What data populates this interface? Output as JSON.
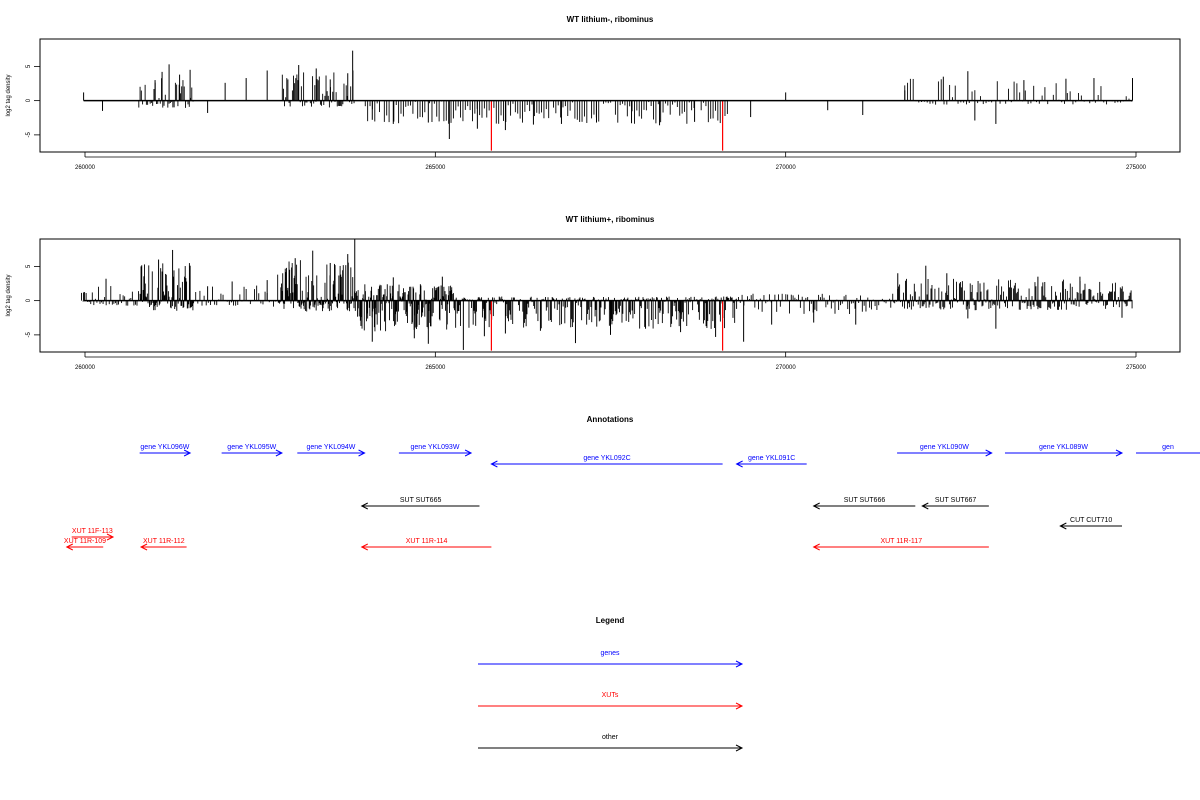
{
  "chart_data": [
    {
      "type": "bar",
      "title": "WT lithium-, ribominus",
      "xlabel": "",
      "ylabel": "log2 tag density",
      "xlim": [
        259800,
        275800
      ],
      "ylim": [
        -7.5,
        9.0
      ],
      "xticks": [
        260000,
        265000,
        270000,
        275000
      ],
      "yticks": [
        -5,
        0,
        5
      ],
      "series": [
        {
          "color": "#000000",
          "x": [
            259980,
            260250,
            261000,
            261100,
            261200,
            261350,
            261500,
            261750,
            262000,
            262300,
            262600,
            263050,
            263300,
            263500,
            263750,
            263820,
            264100,
            264400,
            264900,
            265200,
            265600,
            266000,
            266400,
            266800,
            267300,
            267800,
            268200,
            268700,
            269500,
            270000,
            270600,
            271100,
            271700,
            272250,
            272600,
            272700,
            273000,
            273400,
            274000,
            274400,
            274950
          ],
          "values": [
            1.2,
            -1.5,
            3.0,
            4.2,
            5.3,
            3.8,
            4.5,
            -1.8,
            2.6,
            3.3,
            4.4,
            5.2,
            4.7,
            3.1,
            4.0,
            7.3,
            -2.8,
            -3.4,
            -3.2,
            -5.6,
            -4.1,
            -4.3,
            -3.5,
            -3.4,
            -3.2,
            -3.3,
            -3.6,
            -3.1,
            -2.4,
            1.2,
            -1.4,
            -2.1,
            1.5,
            3.5,
            4.3,
            -2.9,
            -3.4,
            3.0,
            3.2,
            3.3,
            3.3
          ]
        },
        {
          "color": "#ff0000",
          "x": [
            265800,
            269100
          ],
          "values": [
            -7.3,
            -7.3
          ]
        }
      ]
    },
    {
      "type": "bar",
      "title": "WT lithium+, ribominus",
      "xlabel": "",
      "ylabel": "log2 tag density",
      "xlim": [
        259800,
        275800
      ],
      "ylim": [
        -7.5,
        9.0
      ],
      "xticks": [
        260000,
        265000,
        270000,
        275000
      ],
      "yticks": [
        -5,
        0,
        5
      ],
      "series": [
        {
          "color": "#000000",
          "x": [
            259980,
            260300,
            260800,
            261050,
            261250,
            261500,
            261750,
            262100,
            262600,
            263000,
            263250,
            263500,
            263750,
            263850,
            264100,
            264400,
            264700,
            264900,
            265100,
            265400,
            265700,
            266000,
            266500,
            267000,
            267500,
            268000,
            268500,
            269000,
            269400,
            269800,
            270400,
            271000,
            271600,
            272000,
            272300,
            272600,
            273000,
            273600,
            274200,
            274800
          ],
          "values": [
            1.2,
            3.2,
            5.0,
            6.0,
            7.4,
            5.1,
            2.1,
            2.8,
            3.0,
            6.2,
            7.3,
            5.5,
            6.8,
            9.0,
            -6.0,
            3.4,
            -5.5,
            -6.3,
            3.5,
            -7.2,
            -5.2,
            -4.8,
            -4.4,
            -6.2,
            -5.0,
            -4.1,
            -4.6,
            -5.3,
            -6.0,
            -3.5,
            -3.2,
            -3.5,
            4.0,
            5.1,
            4.0,
            -2.6,
            -4.1,
            3.5,
            3.5,
            -2.5
          ]
        },
        {
          "color": "#ff0000",
          "x": [
            265800,
            269100
          ],
          "values": [
            -7.3,
            -7.3
          ]
        }
      ]
    }
  ],
  "annotations": {
    "title": "Annotations",
    "features": [
      {
        "label": "gene YKL096W",
        "start": 260780,
        "end": 261500,
        "color": "#0000ff",
        "row": 0
      },
      {
        "label": "gene YKL095W",
        "start": 261950,
        "end": 262810,
        "color": "#0000ff",
        "row": 0
      },
      {
        "label": "gene YKL094W",
        "start": 263030,
        "end": 263990,
        "color": "#0000ff",
        "row": 0
      },
      {
        "label": "gene YKL093W",
        "start": 264480,
        "end": 265510,
        "color": "#0000ff",
        "row": 0
      },
      {
        "label": "gene YKL092C",
        "start": 265800,
        "end": 269100,
        "color": "#0000ff",
        "row": 1
      },
      {
        "label": "gene YKL091C",
        "start": 269300,
        "end": 270300,
        "color": "#0000ff",
        "row": 1
      },
      {
        "label": "gene YKL090W",
        "start": 271590,
        "end": 272940,
        "color": "#0000ff",
        "row": 0
      },
      {
        "label": "gene YKL089W",
        "start": 273130,
        "end": 274800,
        "color": "#0000ff",
        "row": 0
      },
      {
        "label": "gen",
        "start": 275000,
        "end": 276000,
        "color": "#0000ff",
        "row": 0
      },
      {
        "label": "SUT SUT665",
        "start": 263950,
        "end": 265630,
        "color": "#000000",
        "row": 3
      },
      {
        "label": "SUT SUT666",
        "start": 270400,
        "end": 271850,
        "color": "#000000",
        "row": 3
      },
      {
        "label": "SUT SUT667",
        "start": 271950,
        "end": 272900,
        "color": "#000000",
        "row": 3
      },
      {
        "label": "CUT CUT710",
        "start": 273920,
        "end": 274800,
        "color": "#000000",
        "row": 4
      },
      {
        "label": "XUT 11F-113",
        "start": 259810,
        "end": 260400,
        "color": "#ff0000",
        "row": 5
      },
      {
        "label": "XUT 11R-109",
        "start": 259740,
        "end": 260260,
        "color": "#ff0000",
        "row": 6
      },
      {
        "label": "XUT 11R-112",
        "start": 260800,
        "end": 261450,
        "color": "#ff0000",
        "row": 6
      },
      {
        "label": "XUT 11R-114",
        "start": 263950,
        "end": 265800,
        "color": "#ff0000",
        "row": 6
      },
      {
        "label": "XUT 11R-117",
        "start": 270400,
        "end": 272900,
        "color": "#ff0000",
        "row": 6
      }
    ]
  },
  "legend": {
    "title": "Legend",
    "items": [
      {
        "label": "genes",
        "color": "#0000ff"
      },
      {
        "label": "XUTs",
        "color": "#ff0000"
      },
      {
        "label": "other",
        "color": "#000000"
      }
    ]
  }
}
